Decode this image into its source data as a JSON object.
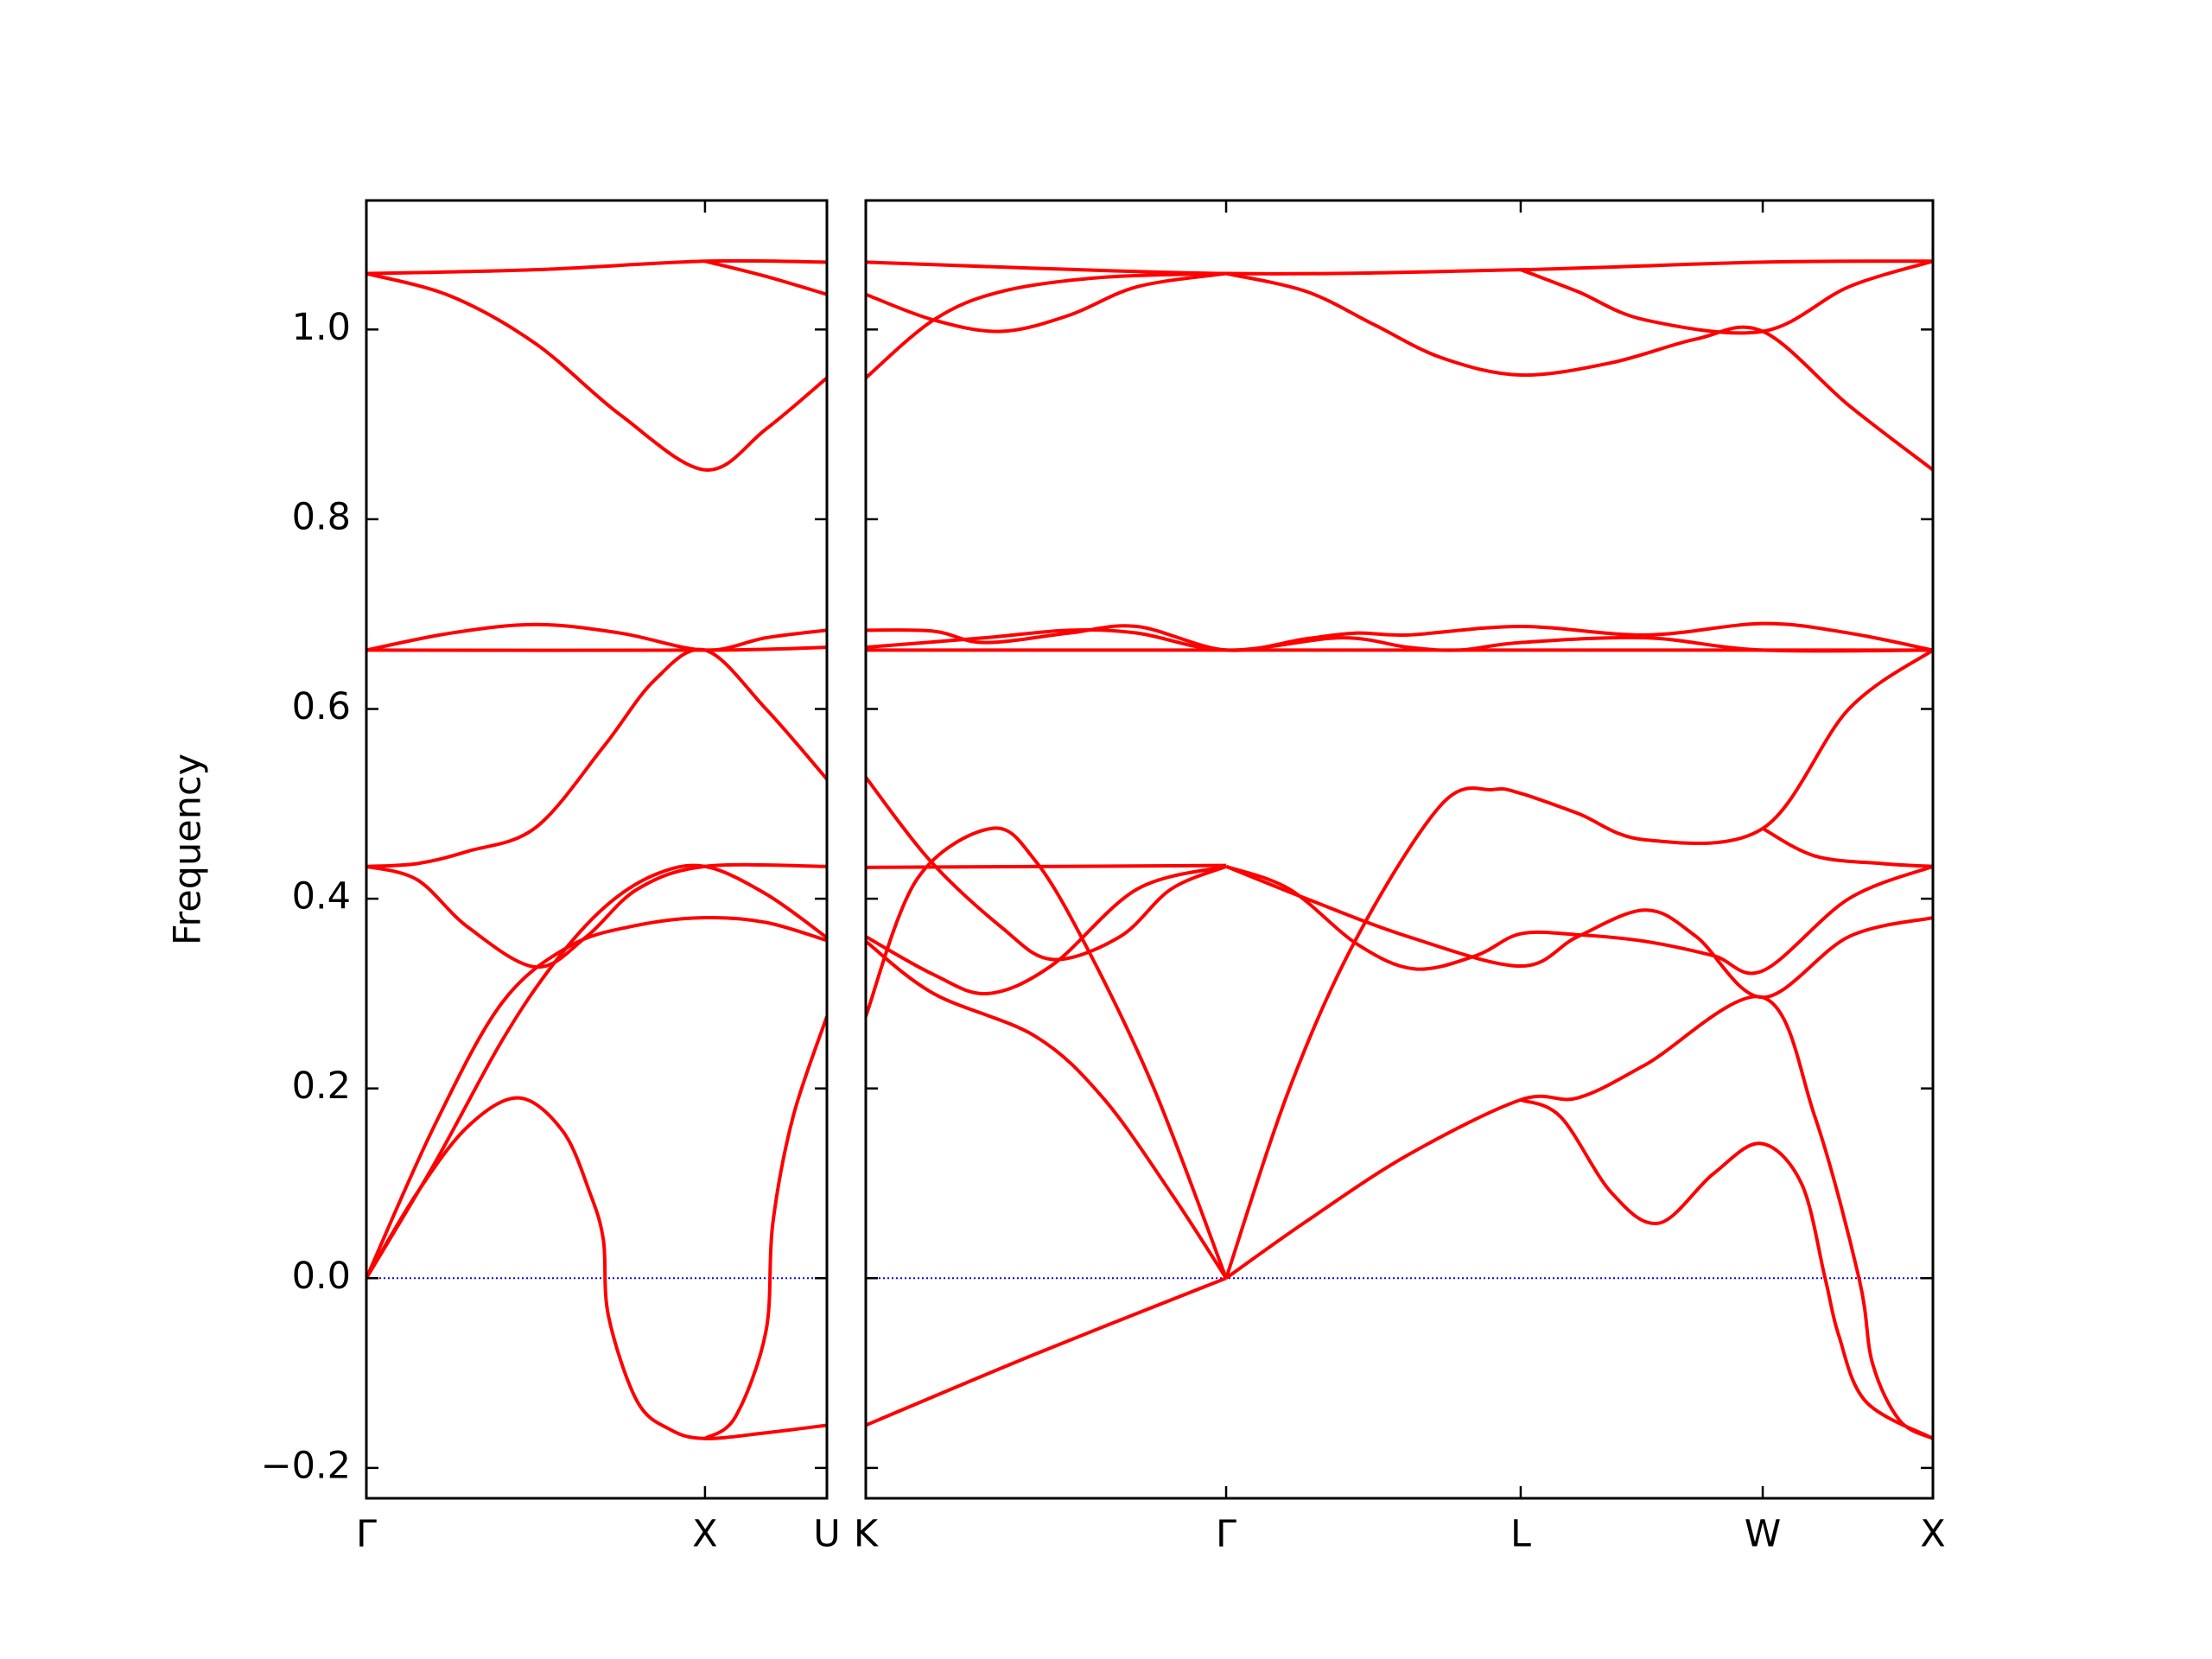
{
  "chart_data": [
    {
      "type": "line",
      "ylabel": "Frequency",
      "color": "#ff0000",
      "zero_line": {
        "value": 0,
        "color": "#0000ff"
      },
      "xlim": [
        0,
        1.36
      ],
      "xticks": [
        {
          "value": 0,
          "label": "Γ"
        },
        {
          "value": 1.0,
          "label": "X"
        },
        {
          "value": 1.36,
          "label": "U"
        }
      ],
      "ylim": [
        -0.232,
        1.136
      ],
      "yticks": [
        {
          "value": -0.2,
          "label": "−0.2"
        },
        {
          "value": 0,
          "label": "0.0"
        },
        0.2,
        0.4,
        0.6,
        0.8,
        {
          "value": 1,
          "label": "1.0"
        }
      ],
      "series": [
        {
          "x": [
            0,
            0.5,
            1.0,
            1.36
          ],
          "values": [
            1.059,
            1.063,
            1.072,
            1.071
          ]
        },
        {
          "x": [
            1.0,
            1.18,
            1.36
          ],
          "values": [
            1.072,
            1.056,
            1.037
          ]
        },
        {
          "x": [
            0,
            0.25,
            0.5,
            0.75,
            1.0,
            1.18,
            1.36
          ],
          "values": [
            1.059,
            1.035,
            0.985,
            0.91,
            0.852,
            0.895,
            0.949
          ]
        },
        {
          "x": [
            0,
            1.0,
            1.36
          ],
          "values": [
            0.662,
            0.662,
            0.665
          ]
        },
        {
          "x": [
            0,
            0.25,
            0.5,
            0.75,
            1.0,
            1.18,
            1.36
          ],
          "values": [
            0.662,
            0.68,
            0.689,
            0.68,
            0.662,
            0.675,
            0.683
          ]
        },
        {
          "x": [
            0,
            0.15,
            0.3,
            0.5,
            0.7,
            0.85,
            1.0,
            1.18,
            1.36
          ],
          "values": [
            0.434,
            0.437,
            0.45,
            0.475,
            0.56,
            0.63,
            0.662,
            0.6,
            0.526
          ]
        },
        {
          "x": [
            0,
            0.15,
            0.3,
            0.5,
            0.65,
            0.8,
            1.0,
            1.36
          ],
          "values": [
            0.434,
            0.42,
            0.37,
            0.328,
            0.36,
            0.41,
            0.434,
            0.434
          ]
        },
        {
          "x": [
            0,
            0.2,
            0.4,
            0.55,
            0.7,
            0.85,
            1.0,
            1.18,
            1.36
          ],
          "values": [
            0,
            0.12,
            0.25,
            0.33,
            0.39,
            0.425,
            0.434,
            0.405,
            0.359
          ]
        },
        {
          "x": [
            0,
            0.2,
            0.4,
            0.6,
            0.8,
            1.0,
            1.18,
            1.36
          ],
          "values": [
            0,
            0.16,
            0.29,
            0.35,
            0.372,
            0.38,
            0.375,
            0.356
          ]
        },
        {
          "x": [
            0,
            0.15,
            0.3,
            0.45,
            0.58,
            0.66,
            0.7,
            0.715,
            0.8,
            0.9,
            1.0,
            1.18,
            1.36
          ],
          "values": [
            0,
            0.09,
            0.16,
            0.19,
            0.155,
            0.09,
            0.04,
            -0.04,
            -0.13,
            -0.16,
            -0.169,
            -0.163,
            -0.155
          ]
        },
        {
          "x": [
            1.0,
            1.09,
            1.18,
            1.2,
            1.26,
            1.36
          ],
          "values": [
            -0.169,
            -0.146,
            -0.056,
            0.057,
            0.17,
            0.276
          ]
        }
      ]
    },
    {
      "type": "line",
      "color": "#ff0000",
      "zero_line": {
        "value": 0,
        "color": "#0000ff"
      },
      "xlim": [
        0,
        3.148
      ],
      "xticks": [
        {
          "value": 0,
          "label": "K"
        },
        {
          "value": 1.063,
          "label": "Γ"
        },
        {
          "value": 1.932,
          "label": "L"
        },
        {
          "value": 2.646,
          "label": "W"
        },
        {
          "value": 3.148,
          "label": "X"
        }
      ],
      "ylim": [
        -0.232,
        1.136
      ],
      "yticks": [
        -0.2,
        0,
        0.2,
        0.4,
        0.6,
        0.8,
        1.0
      ],
      "series": [
        {
          "x": [
            0,
            1.063,
            1.932,
            2.646,
            3.148
          ],
          "values": [
            1.071,
            1.059,
            1.063,
            1.071,
            1.072
          ]
        },
        {
          "x": [
            0,
            0.2,
            0.4,
            0.6,
            0.8,
            1.063
          ],
          "values": [
            1.037,
            1.01,
            0.998,
            1.015,
            1.045,
            1.059
          ]
        },
        {
          "x": [
            0,
            0.2,
            0.4,
            0.7,
            1.063
          ],
          "values": [
            0.949,
            1.01,
            1.04,
            1.055,
            1.059
          ]
        },
        {
          "x": [
            1.063,
            1.3,
            1.5,
            1.7,
            1.932,
            2.2,
            2.45,
            2.646,
            2.9,
            3.148
          ],
          "values": [
            1.059,
            1.04,
            1.005,
            0.97,
            0.952,
            0.965,
            0.99,
            0.998,
            0.92,
            0.852
          ]
        },
        {
          "x": [
            1.932,
            2.1,
            2.3,
            2.646,
            2.9,
            3.148
          ],
          "values": [
            1.063,
            1.04,
            1.01,
            0.998,
            1.045,
            1.072
          ]
        },
        {
          "x": [
            0,
            3.148
          ],
          "values": [
            0.662,
            0.662
          ]
        },
        {
          "x": [
            0,
            0.2,
            0.35,
            0.6,
            0.8,
            1.063,
            1.3,
            1.45,
            1.6,
            1.932,
            2.3,
            2.646,
            2.9,
            3.148
          ],
          "values": [
            0.683,
            0.682,
            0.67,
            0.68,
            0.687,
            0.662,
            0.674,
            0.68,
            0.678,
            0.687,
            0.678,
            0.69,
            0.68,
            0.662
          ]
        },
        {
          "x": [
            0,
            0.35,
            0.6,
            0.8,
            1.063,
            1.4,
            1.6,
            1.75,
            1.932,
            2.3,
            2.646,
            3.148
          ],
          "values": [
            0.665,
            0.675,
            0.683,
            0.68,
            0.662,
            0.675,
            0.665,
            0.662,
            0.67,
            0.675,
            0.662,
            0.662
          ]
        },
        {
          "x": [
            0,
            1.063
          ],
          "values": [
            0.433,
            0.435
          ]
        },
        {
          "x": [
            0,
            0.19,
            0.4,
            0.55,
            0.75,
            0.9,
            1.063
          ],
          "values": [
            0.528,
            0.44,
            0.37,
            0.336,
            0.36,
            0.41,
            0.434
          ]
        },
        {
          "x": [
            0,
            0.15,
            0.37,
            0.5,
            0.65,
            0.85,
            1.063
          ],
          "values": [
            0.276,
            0.42,
            0.474,
            0.44,
            0.35,
            0.2,
            0
          ]
        },
        {
          "x": [
            0,
            0.2,
            0.36,
            0.55,
            0.8,
            1.063
          ],
          "values": [
            0.36,
            0.32,
            0.3,
            0.33,
            0.41,
            0.434
          ]
        },
        {
          "x": [
            0,
            0.2,
            0.5,
            0.7,
            0.9,
            1.063
          ],
          "values": [
            0.355,
            0.3,
            0.255,
            0.19,
            0.09,
            0
          ]
        },
        {
          "x": [
            0,
            0.5,
            1.063
          ],
          "values": [
            -0.155,
            -0.08,
            0
          ]
        },
        {
          "x": [
            1.063,
            1.25,
            1.45,
            1.62,
            1.8,
            1.932,
            2.1,
            2.3,
            2.5,
            2.646,
            2.9,
            3.148
          ],
          "values": [
            0.434,
            0.41,
            0.352,
            0.326,
            0.34,
            0.363,
            0.362,
            0.355,
            0.34,
            0.324,
            0.4,
            0.434
          ]
        },
        {
          "x": [
            1.063,
            1.3,
            1.6,
            1.932,
            2.1,
            2.3,
            2.45,
            2.646,
            2.9,
            3.148
          ],
          "values": [
            0.434,
            0.4,
            0.36,
            0.329,
            0.36,
            0.388,
            0.36,
            0.296,
            0.36,
            0.38
          ]
        },
        {
          "x": [
            1.063,
            1.25,
            1.45,
            1.7,
            1.85,
            1.932,
            2.1,
            2.3,
            2.646,
            2.9,
            3.148
          ],
          "values": [
            0,
            0.2,
            0.36,
            0.5,
            0.515,
            0.511,
            0.49,
            0.462,
            0.474,
            0.6,
            0.662
          ]
        },
        {
          "x": [
            2.646,
            2.8,
            3.0,
            3.148
          ],
          "values": [
            0.474,
            0.445,
            0.437,
            0.434
          ]
        },
        {
          "x": [
            1.063,
            1.3,
            1.6,
            1.932,
            2.1,
            2.3,
            2.646,
            2.8,
            2.93,
            2.97,
            3.05,
            3.148
          ],
          "values": [
            0,
            0.06,
            0.13,
            0.188,
            0.19,
            0.225,
            0.296,
            0.17,
            0.0,
            -0.09,
            -0.15,
            -0.169
          ]
        },
        {
          "x": [
            1.932,
            2.05,
            2.2,
            2.34,
            2.5,
            2.64,
            2.76,
            2.83,
            2.87,
            2.95,
            3.148
          ],
          "values": [
            0.188,
            0.17,
            0.09,
            0.058,
            0.11,
            0.142,
            0.1,
            0.0,
            -0.06,
            -0.13,
            -0.169
          ]
        }
      ]
    }
  ]
}
